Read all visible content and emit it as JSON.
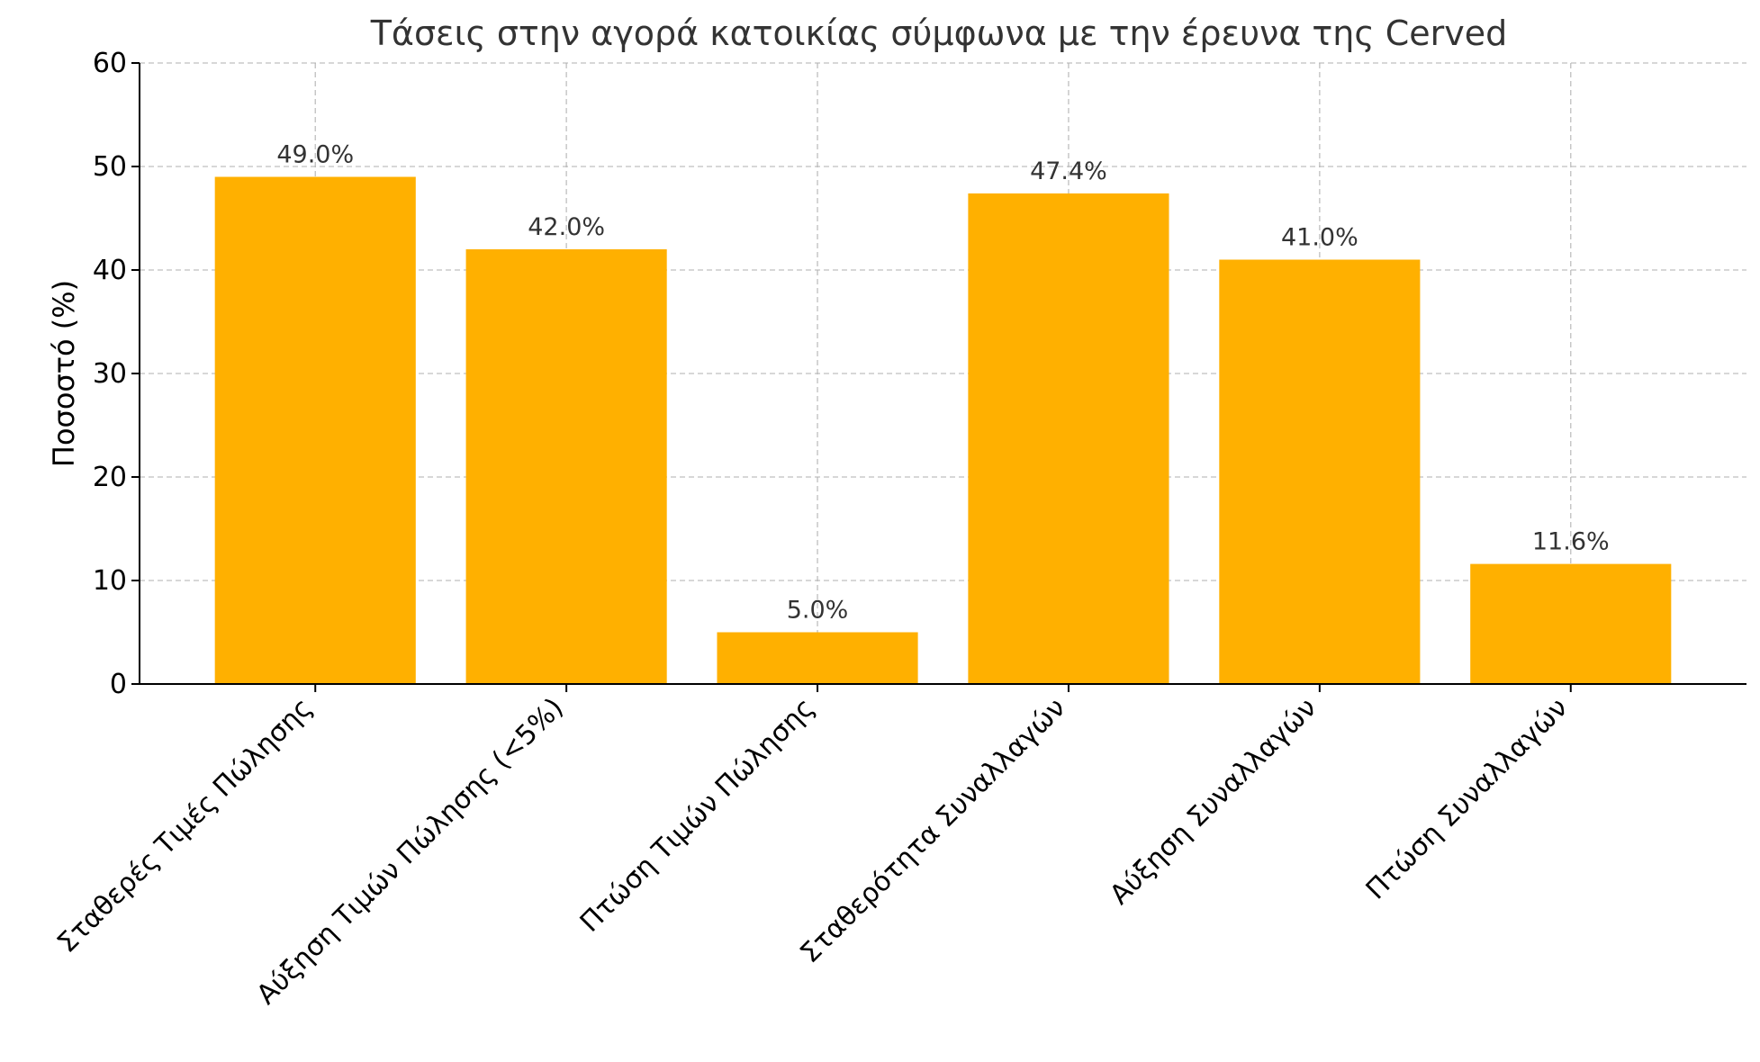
{
  "chart_data": {
    "type": "bar",
    "title": "Τάσεις στην αγορά κατοικίας σύμφωνα με την έρευνα της Cerved",
    "xlabel": "",
    "ylabel": "Ποσοστό (%)",
    "categories": [
      "Σταθερές Τιμές Πώλησης",
      "Αύξηση Τιμών Πώλησης (<5%)",
      "Πτώση Τιμών Πώλησης",
      "Σταθερότητα Συναλλαγών",
      "Αύξηση Συναλλαγών",
      "Πτώση Συναλλαγών"
    ],
    "values": [
      49.0,
      42.0,
      5.0,
      47.4,
      41.0,
      11.6
    ],
    "data_labels": [
      "49.0%",
      "42.0%",
      "5.0%",
      "47.4%",
      "41.0%",
      "11.6%"
    ],
    "ylim": [
      0,
      60
    ],
    "yticks": [
      0,
      10,
      20,
      30,
      40,
      50,
      60
    ],
    "grid": true,
    "bar_color": "#FFB000"
  }
}
